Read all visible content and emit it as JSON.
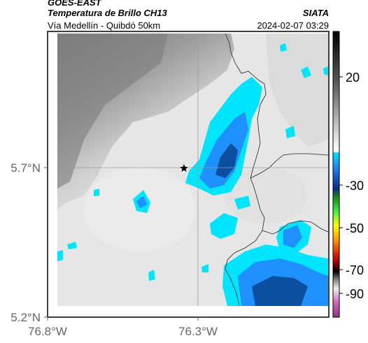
{
  "header": {
    "satellite": "GOES-EAST",
    "product": "Temperatura de Brillo CH13",
    "route": "Vía Medellín - Quibdó 50km",
    "agency": "SIATA",
    "datetime": "2024-02-07 03:29"
  },
  "map": {
    "lat_labels": [
      "5.7°N",
      "5.2°N"
    ],
    "lon_labels": [
      "76.8°W",
      "76.3°W"
    ],
    "marker_icon": "star-icon"
  },
  "colorbar": {
    "tick_labels": [
      "20",
      "-30",
      "-50",
      "-70",
      "-90"
    ],
    "colors": {
      "warm_top": "#000000",
      "gray_mid": "#8a8a8a",
      "white": "#ffffff",
      "cyan": "#00e5ff",
      "blue": "#0a4fa0",
      "green": "#22cc22",
      "yellow": "#ffff00",
      "orange": "#ff7a00",
      "red": "#cc0000",
      "black": "#000000",
      "magenta": "#cc3399"
    }
  }
}
